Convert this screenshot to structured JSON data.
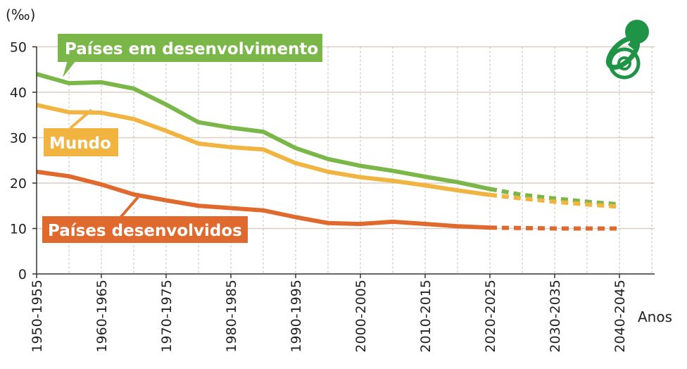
{
  "chart_data": {
    "type": "line",
    "y_unit": "(‰)",
    "x_axis_label": "Anos",
    "ylim": [
      0,
      50
    ],
    "yticks": [
      0,
      10,
      20,
      30,
      40,
      50
    ],
    "x_tick_labels": [
      "1950-1955",
      "1960-1965",
      "1970-1975",
      "1980-1985",
      "1990-1995",
      "2000-2005",
      "2010-2015",
      "2020-2025",
      "2030-2035",
      "2040-2045"
    ],
    "x_start": 1950,
    "x_step": 5,
    "grid": true,
    "icon": "pacifier-icon",
    "series": [
      {
        "name": "Países em desenvolvimento",
        "color": "#7ab648",
        "values": [
          44.0,
          42.0,
          42.2,
          40.8,
          37.3,
          33.4,
          32.2,
          31.3,
          27.7,
          25.3,
          23.8,
          22.7,
          21.4,
          20.2,
          18.7,
          17.4,
          16.6,
          15.9,
          15.3
        ],
        "projection_start_index": 14
      },
      {
        "name": "Mundo",
        "color": "#f2b441",
        "values": [
          37.2,
          35.6,
          35.5,
          34.1,
          31.5,
          28.7,
          27.9,
          27.4,
          24.4,
          22.5,
          21.3,
          20.5,
          19.5,
          18.4,
          17.4,
          16.6,
          15.9,
          15.3,
          14.8
        ],
        "projection_start_index": 14
      },
      {
        "name": "Países desenvolvidos",
        "color": "#e0692d",
        "values": [
          22.5,
          21.5,
          19.7,
          17.5,
          16.2,
          15.0,
          14.5,
          14.0,
          12.5,
          11.2,
          11.0,
          11.5,
          11.0,
          10.5,
          10.2,
          10.1,
          10.0,
          10.0,
          10.0
        ],
        "projection_start_index": 14
      }
    ]
  }
}
